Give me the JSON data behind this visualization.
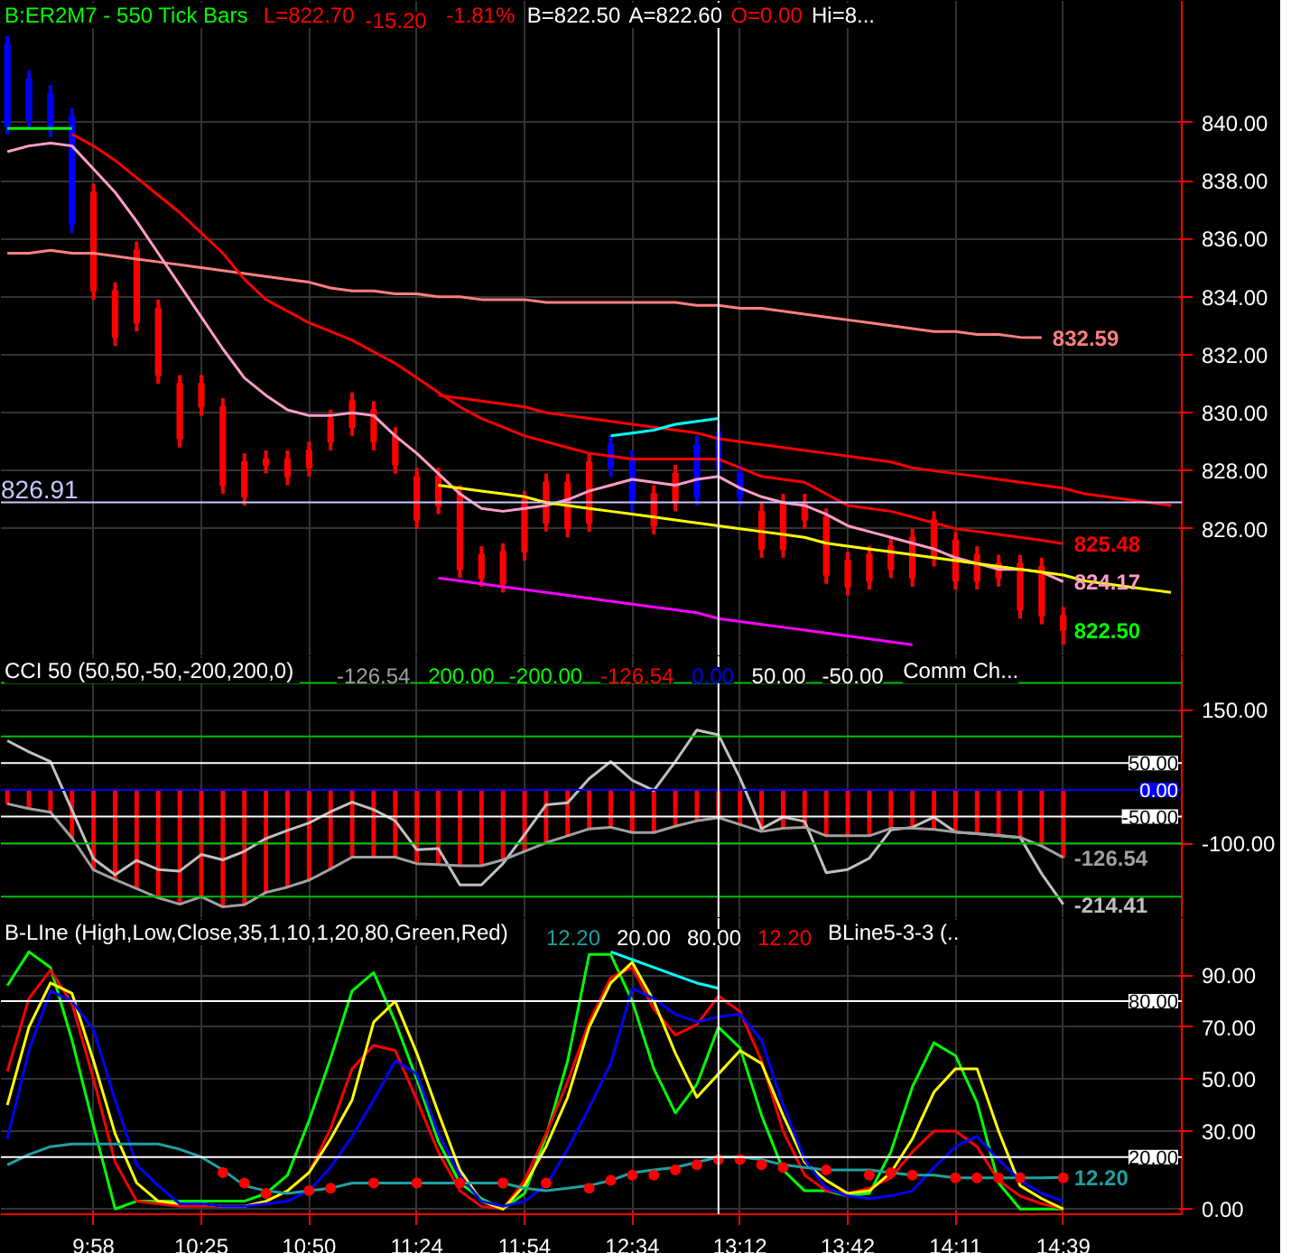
{
  "chart_data": [
    {
      "type": "candlestick",
      "title": "B:ER2M7 - 550 Tick Bars",
      "ylim": [
        821.6,
        844.2
      ],
      "tick_labels": "y",
      "grid": true,
      "categories": [
        null,
        null,
        null,
        null,
        null,
        null,
        null,
        null,
        null,
        null,
        null,
        null,
        null,
        null,
        null,
        null,
        null,
        null,
        null,
        null,
        null,
        null,
        null,
        null,
        null,
        null,
        null,
        null,
        null,
        null,
        null,
        null,
        null,
        null,
        null,
        null,
        null,
        null,
        null,
        null,
        null,
        null,
        null,
        null,
        null,
        null,
        null,
        null,
        null,
        null,
        null,
        null,
        null,
        null,
        null
      ],
      "yticks": [
        {
          "value": 826,
          "label": "826.00"
        },
        {
          "value": 828,
          "label": "828.00"
        },
        {
          "value": 830,
          "label": "830.00"
        },
        {
          "value": 832,
          "label": "832.00"
        },
        {
          "value": 834,
          "label": "834.00"
        },
        {
          "value": 836,
          "label": "836.00"
        },
        {
          "value": 838,
          "label": "838.00"
        },
        {
          "value": 840,
          "label": "840.00"
        }
      ],
      "annotations": [
        "L=822.70",
        "-15.20",
        "-1.81%",
        "B=822.50",
        "A=822.60",
        "O=0.00",
        "Hi=8..."
      ],
      "ref_lines": [
        {
          "axis": "y",
          "value": 826.91,
          "label": "826.91",
          "color": "#c8c8ff"
        }
      ],
      "series": [
        {
          "color": "#00ff00",
          "colors": [
            "#0000ff",
            "#0000ff",
            "#0000ff",
            "#0000ff",
            "#ff0000",
            "#ff0000",
            "#ff0000",
            "#ff0000",
            "#ff0000",
            "#ff0000",
            "#ff0000",
            "#ff0000",
            "#ff0000",
            "#ff0000",
            "#ff0000",
            "#ff0000",
            "#ff0000",
            "#ff0000",
            "#ff0000",
            "#ff0000",
            "#ff0000",
            "#ff0000",
            "#ff0000",
            "#ff0000",
            "#ff0000",
            "#ff0000",
            "#ff0000",
            "#ff0000",
            "#0000ff",
            "#0000ff",
            "#ff0000",
            "#ff0000",
            "#0000ff",
            "#0000ff",
            "#0000ff",
            "#ff0000",
            "#ff0000",
            "#ff0000",
            "#ff0000",
            "#ff0000",
            "#ff0000",
            "#ff0000",
            "#ff0000",
            "#ff0000",
            "#ff0000",
            "#ff0000",
            "#ff0000",
            "#ff0000",
            "#ff0000",
            "#ff0000",
            null,
            null,
            null,
            null,
            null
          ],
          "ohlc": [
            [
              842.7,
              843.0,
              839.6,
              839.9
            ],
            [
              841.5,
              841.8,
              839.8,
              840.1
            ],
            [
              841.0,
              841.3,
              839.5,
              839.8
            ],
            [
              840.2,
              840.5,
              836.2,
              836.5
            ],
            [
              837.6,
              837.9,
              833.9,
              834.2
            ],
            [
              834.2,
              834.5,
              832.3,
              832.6
            ],
            [
              835.6,
              835.9,
              832.8,
              833.1
            ],
            [
              833.6,
              833.9,
              831.0,
              831.3
            ],
            [
              831.0,
              831.3,
              828.8,
              829.1
            ],
            [
              831.0,
              831.3,
              829.9,
              830.2
            ],
            [
              830.2,
              830.5,
              827.2,
              827.5
            ],
            [
              828.3,
              828.6,
              826.8,
              827.1
            ],
            [
              828.4,
              828.7,
              827.9,
              828.2
            ],
            [
              828.4,
              828.7,
              827.5,
              827.8
            ],
            [
              828.7,
              829.0,
              827.8,
              828.1
            ],
            [
              829.8,
              830.1,
              828.7,
              829.0
            ],
            [
              830.4,
              830.7,
              829.2,
              829.5
            ],
            [
              830.1,
              830.4,
              828.7,
              829.0
            ],
            [
              829.2,
              829.5,
              827.9,
              828.2
            ],
            [
              827.8,
              828.1,
              826.0,
              826.3
            ],
            [
              827.8,
              828.1,
              826.5,
              826.8
            ],
            [
              827.2,
              827.5,
              824.3,
              824.6
            ],
            [
              825.1,
              825.4,
              824.0,
              824.3
            ],
            [
              825.2,
              825.5,
              823.8,
              824.1
            ],
            [
              827.0,
              827.3,
              824.9,
              825.2
            ],
            [
              827.6,
              827.9,
              825.9,
              826.2
            ],
            [
              827.6,
              827.9,
              825.7,
              826.0
            ],
            [
              828.3,
              828.6,
              825.9,
              826.2
            ],
            [
              828.9,
              829.2,
              827.8,
              828.1
            ],
            [
              828.4,
              828.7,
              826.6,
              826.9
            ],
            [
              827.2,
              827.5,
              825.8,
              826.1
            ],
            [
              827.9,
              828.2,
              826.6,
              826.9
            ],
            [
              828.9,
              829.2,
              826.8,
              827.1
            ],
            [
              829.3,
              829.6,
              827.8,
              828.1
            ],
            [
              827.9,
              828.2,
              826.8,
              827.1
            ],
            [
              826.6,
              826.9,
              825.0,
              825.3
            ],
            [
              826.9,
              827.2,
              825.0,
              825.3
            ],
            [
              826.9,
              827.2,
              826.0,
              826.3
            ],
            [
              826.4,
              826.7,
              824.1,
              824.4
            ],
            [
              824.9,
              825.2,
              823.7,
              824.0
            ],
            [
              825.1,
              825.4,
              823.9,
              824.2
            ],
            [
              825.4,
              825.7,
              824.3,
              824.6
            ],
            [
              825.7,
              826.0,
              824.0,
              824.3
            ],
            [
              826.3,
              826.6,
              824.7,
              825.0
            ],
            [
              825.6,
              825.9,
              823.9,
              824.2
            ],
            [
              825.1,
              825.4,
              823.9,
              824.2
            ],
            [
              824.8,
              825.1,
              824.0,
              824.3
            ],
            [
              824.8,
              825.1,
              822.9,
              823.2
            ],
            [
              824.7,
              825.0,
              822.7,
              823.0
            ],
            [
              823.0,
              823.3,
              822.0,
              822.5
            ],
            null,
            null,
            null,
            null,
            null
          ],
          "value_labels": [
            null,
            null,
            null,
            null,
            null,
            null,
            null,
            null,
            null,
            null,
            null,
            null,
            null,
            null,
            null,
            null,
            null,
            null,
            null,
            null,
            null,
            null,
            null,
            null,
            null,
            null,
            null,
            null,
            null,
            null,
            null,
            null,
            null,
            null,
            null,
            null,
            null,
            null,
            null,
            null,
            null,
            null,
            null,
            null,
            null,
            null,
            null,
            null,
            null,
            "822.50",
            null,
            null,
            null,
            null,
            null
          ]
        },
        {
          "type": "line",
          "color": "#ff8080",
          "values": [
            835.5,
            835.5,
            835.6,
            835.5,
            835.5,
            835.4,
            835.3,
            835.2,
            835.1,
            835.0,
            834.9,
            834.8,
            834.7,
            834.6,
            834.5,
            834.3,
            834.2,
            834.2,
            834.1,
            834.1,
            834.0,
            834.0,
            833.9,
            833.9,
            833.9,
            833.8,
            833.8,
            833.8,
            833.8,
            833.8,
            833.8,
            833.8,
            833.7,
            833.7,
            833.6,
            833.6,
            833.5,
            833.4,
            833.3,
            833.2,
            833.1,
            833.0,
            832.9,
            832.8,
            832.8,
            832.7,
            832.7,
            832.6,
            832.59,
            null,
            null,
            null,
            null,
            null,
            null
          ],
          "value_labels": [
            null,
            null,
            null,
            null,
            null,
            null,
            null,
            null,
            null,
            null,
            null,
            null,
            null,
            null,
            null,
            null,
            null,
            null,
            null,
            null,
            null,
            null,
            null,
            null,
            null,
            null,
            null,
            null,
            null,
            null,
            null,
            null,
            null,
            null,
            null,
            null,
            null,
            null,
            null,
            null,
            null,
            null,
            null,
            null,
            null,
            null,
            null,
            null,
            "832.59",
            null,
            null,
            null,
            null,
            null,
            null
          ]
        },
        {
          "type": "line",
          "color": "#ff0000",
          "values": [
            null,
            null,
            null,
            839.6,
            839.2,
            838.7,
            838.1,
            837.5,
            836.9,
            836.2,
            835.5,
            834.6,
            833.9,
            833.5,
            833.1,
            832.8,
            832.5,
            832.1,
            831.7,
            831.2,
            830.7,
            830.2,
            829.8,
            829.5,
            829.2,
            829.0,
            828.8,
            828.6,
            828.5,
            828.4,
            828.4,
            828.4,
            828.4,
            828.4,
            828.1,
            827.8,
            827.7,
            827.6,
            827.2,
            826.8,
            826.7,
            826.6,
            826.4,
            826.2,
            826.0,
            825.9,
            825.8,
            825.7,
            825.6,
            825.48,
            null,
            null,
            null,
            null,
            null
          ],
          "value_labels": [
            null,
            null,
            null,
            null,
            null,
            null,
            null,
            null,
            null,
            null,
            null,
            null,
            null,
            null,
            null,
            null,
            null,
            null,
            null,
            null,
            null,
            null,
            null,
            null,
            null,
            null,
            null,
            null,
            null,
            null,
            null,
            null,
            null,
            null,
            null,
            null,
            null,
            null,
            null,
            null,
            null,
            null,
            null,
            null,
            null,
            null,
            null,
            null,
            null,
            "825.48",
            null,
            null,
            null,
            null,
            null
          ]
        },
        {
          "type": "line",
          "color": "#ff9ec8",
          "values": [
            839.0,
            839.2,
            839.3,
            839.2,
            838.4,
            837.6,
            836.6,
            835.5,
            834.4,
            833.3,
            832.2,
            831.2,
            830.6,
            830.1,
            829.9,
            829.9,
            830.0,
            829.9,
            829.2,
            828.6,
            827.9,
            827.2,
            826.7,
            826.6,
            826.7,
            826.8,
            827.0,
            827.3,
            827.5,
            827.7,
            827.6,
            827.5,
            827.7,
            827.8,
            827.4,
            827.1,
            826.9,
            826.8,
            826.5,
            826.1,
            825.9,
            825.7,
            825.5,
            825.3,
            825.0,
            824.8,
            824.6,
            824.6,
            824.5,
            824.17,
            null,
            null,
            null,
            null,
            null
          ],
          "value_labels": [
            null,
            null,
            null,
            null,
            null,
            null,
            null,
            null,
            null,
            null,
            null,
            null,
            null,
            null,
            null,
            null,
            null,
            null,
            null,
            null,
            null,
            null,
            null,
            null,
            null,
            null,
            null,
            null,
            null,
            null,
            null,
            null,
            null,
            null,
            null,
            null,
            null,
            null,
            null,
            null,
            null,
            null,
            null,
            null,
            null,
            null,
            null,
            null,
            null,
            "824.17",
            null,
            null,
            null,
            null,
            null
          ]
        },
        {
          "type": "line",
          "color": "#ff0000",
          "values": [
            null,
            null,
            null,
            null,
            null,
            null,
            null,
            null,
            null,
            null,
            null,
            null,
            null,
            null,
            null,
            null,
            null,
            null,
            null,
            null,
            830.6,
            830.5,
            830.4,
            830.3,
            830.2,
            830.0,
            829.9,
            829.8,
            829.7,
            829.6,
            829.5,
            829.4,
            829.3,
            829.1,
            829.0,
            828.9,
            828.8,
            828.7,
            828.6,
            828.5,
            828.4,
            828.3,
            828.1,
            828.0,
            827.9,
            827.8,
            827.7,
            827.6,
            827.5,
            827.4,
            827.2,
            827.1,
            827.0,
            826.9,
            826.8
          ]
        },
        {
          "type": "line",
          "color": "#ffff00",
          "values": [
            null,
            null,
            null,
            null,
            null,
            null,
            null,
            null,
            null,
            null,
            null,
            null,
            null,
            null,
            null,
            null,
            null,
            null,
            null,
            null,
            827.5,
            827.4,
            827.3,
            827.2,
            827.1,
            826.9,
            826.8,
            826.7,
            826.6,
            826.5,
            826.4,
            826.3,
            826.2,
            826.1,
            826.0,
            825.9,
            825.8,
            825.7,
            825.5,
            825.4,
            825.3,
            825.2,
            825.1,
            825.0,
            824.9,
            824.8,
            824.7,
            824.6,
            824.5,
            824.4,
            824.2,
            824.1,
            824.0,
            823.9,
            823.8
          ]
        },
        {
          "type": "line",
          "color": "#ff00ff",
          "values": [
            null,
            null,
            null,
            null,
            null,
            null,
            null,
            null,
            null,
            null,
            null,
            null,
            null,
            null,
            null,
            null,
            null,
            null,
            null,
            null,
            824.3,
            824.2,
            824.1,
            824.0,
            823.9,
            823.8,
            823.7,
            823.6,
            823.5,
            823.4,
            823.3,
            823.2,
            823.1,
            822.9,
            822.8,
            822.7,
            822.6,
            822.5,
            822.4,
            822.3,
            822.2,
            822.1,
            822.0,
            null,
            null,
            null,
            null,
            null,
            null,
            null,
            null,
            null,
            null,
            null,
            null
          ]
        },
        {
          "type": "line",
          "color": "#00ffff",
          "values": [
            null,
            null,
            null,
            null,
            null,
            null,
            null,
            null,
            null,
            null,
            null,
            null,
            null,
            null,
            null,
            null,
            null,
            null,
            null,
            null,
            null,
            null,
            null,
            null,
            null,
            null,
            null,
            null,
            829.2,
            829.3,
            829.4,
            829.6,
            829.7,
            829.8,
            null,
            null,
            null,
            null,
            null,
            null,
            null,
            null,
            null,
            null,
            null,
            null,
            null,
            null,
            null,
            null,
            null,
            null,
            null,
            null,
            null
          ]
        },
        {
          "type": "line",
          "color": "#00ff00",
          "values": [
            839.8,
            839.8,
            839.8,
            839.8,
            null,
            null,
            null,
            null,
            null,
            null,
            null,
            null,
            null,
            null,
            null,
            null,
            null,
            null,
            null,
            null,
            null,
            null,
            null,
            null,
            null,
            null,
            null,
            null,
            null,
            null,
            null,
            null,
            null,
            null,
            null,
            null,
            null,
            null,
            null,
            null,
            null,
            null,
            null,
            null,
            null,
            null,
            null,
            null,
            null,
            null,
            null,
            null,
            null,
            null,
            null
          ]
        }
      ]
    },
    {
      "type": "line",
      "title": "CCI 50  (50,50,-50,-200,200,0)",
      "ylim": [
        -240,
        250
      ],
      "tick_labels": "y",
      "grid": true,
      "categories": [
        null,
        null,
        null,
        null,
        null,
        null,
        null,
        null,
        null,
        null,
        null,
        null,
        null,
        null,
        null,
        null,
        null,
        null,
        null,
        null,
        null,
        null,
        null,
        null,
        null,
        null,
        null,
        null,
        null,
        null,
        null,
        null,
        null,
        null,
        null,
        null,
        null,
        null,
        null,
        null,
        null,
        null,
        null,
        null,
        null,
        null,
        null,
        null,
        null,
        null,
        null,
        null,
        null,
        null,
        null
      ],
      "yticks": [
        {
          "value": 150,
          "label": "150.00"
        },
        {
          "value": -100,
          "label": "-100.00"
        }
      ],
      "annotations": [
        "-126.54",
        "200.00",
        "-200.00",
        "-126.54",
        "0.00",
        "50.00",
        "-50.00",
        "Comm Ch..."
      ],
      "ref_lines": [
        {
          "axis": "y",
          "value": 200,
          "color": "#00c000"
        },
        {
          "axis": "y",
          "value": 100,
          "color": "#00c000"
        },
        {
          "axis": "y",
          "value": 50,
          "label": "50.00",
          "color": "#ffffff"
        },
        {
          "axis": "y",
          "value": 0,
          "label": "0.00",
          "color": "#0000ff"
        },
        {
          "axis": "y",
          "value": -50,
          "label": "-50.00",
          "color": "#ffffff"
        },
        {
          "axis": "y",
          "value": -100,
          "color": "#00c000"
        },
        {
          "axis": "y",
          "value": -200,
          "color": "#00c000"
        }
      ],
      "series": [
        {
          "type": "bar",
          "color": "#ff0000",
          "values": [
            -26,
            -35,
            -42,
            -90,
            -150,
            -168,
            -185,
            -202,
            -214,
            -200,
            -219,
            -215,
            -192,
            -182,
            -169,
            -148,
            -126,
            -126,
            -126,
            -138,
            -140,
            -142,
            -142,
            -131,
            -115,
            -99,
            -86,
            -73,
            -70,
            -80,
            -80,
            -68,
            -58,
            -52,
            -65,
            -78,
            -72,
            -70,
            -86,
            -86,
            -86,
            -72,
            -72,
            -74,
            -79,
            -82,
            -85,
            -89,
            -105,
            -126.54,
            null,
            null,
            null,
            null,
            null
          ]
        },
        {
          "color": "#c0c0c0",
          "values": [
            92,
            71,
            53,
            -38,
            -129,
            -159,
            -132,
            -149,
            -152,
            -121,
            -131,
            -115,
            -91,
            -76,
            -62,
            -41,
            -23,
            -37,
            -58,
            -112,
            -110,
            -178,
            -178,
            -138,
            -84,
            -28,
            -24,
            21,
            53,
            18,
            -1,
            53,
            112,
            103,
            22,
            -73,
            -51,
            -59,
            -155,
            -149,
            -128,
            -75,
            -70,
            -51,
            -79,
            -82,
            -86,
            -89,
            -157,
            -214.41,
            null,
            null,
            null,
            null,
            null
          ],
          "value_labels": [
            null,
            null,
            null,
            null,
            null,
            null,
            null,
            null,
            null,
            null,
            null,
            null,
            null,
            null,
            null,
            null,
            null,
            null,
            null,
            null,
            null,
            null,
            null,
            null,
            null,
            null,
            null,
            null,
            null,
            null,
            null,
            null,
            null,
            null,
            null,
            null,
            null,
            null,
            null,
            null,
            null,
            null,
            null,
            null,
            null,
            null,
            null,
            null,
            null,
            "-214.41",
            null,
            null,
            null,
            null,
            null
          ]
        },
        {
          "color": "#a0a0a0",
          "values": [
            -26,
            -35,
            -42,
            -90,
            -150,
            -168,
            -185,
            -202,
            -214,
            -200,
            -219,
            -215,
            -192,
            -182,
            -169,
            -148,
            -126,
            -126,
            -126,
            -138,
            -140,
            -142,
            -142,
            -131,
            -115,
            -99,
            -86,
            -73,
            -70,
            -80,
            -80,
            -68,
            -58,
            -52,
            -65,
            -78,
            -72,
            -70,
            -86,
            -86,
            -86,
            -72,
            -72,
            -74,
            -79,
            -82,
            -85,
            -89,
            -105,
            -126.54,
            null,
            null,
            null,
            null,
            null
          ],
          "value_labels": [
            null,
            null,
            null,
            null,
            null,
            null,
            null,
            null,
            null,
            null,
            null,
            null,
            null,
            null,
            null,
            null,
            null,
            null,
            null,
            null,
            null,
            null,
            null,
            null,
            null,
            null,
            null,
            null,
            null,
            null,
            null,
            null,
            null,
            null,
            null,
            null,
            null,
            null,
            null,
            null,
            null,
            null,
            null,
            null,
            null,
            null,
            null,
            null,
            null,
            "-126.54",
            null,
            null,
            null,
            null,
            null
          ]
        }
      ]
    },
    {
      "type": "line",
      "title": "B-LIne  (High,Low,Close,35,1,10,1,20,80,Green,Red)",
      "ylim": [
        -2,
        112
      ],
      "grid": true,
      "categories": [
        null,
        null,
        null,
        null,
        "9:58",
        null,
        null,
        null,
        null,
        "10:25",
        null,
        null,
        null,
        null,
        "10:50",
        null,
        null,
        null,
        null,
        "11:24",
        null,
        null,
        null,
        null,
        "11:54",
        null,
        null,
        null,
        null,
        "12:34",
        null,
        null,
        null,
        null,
        "13:12",
        null,
        null,
        null,
        null,
        "13:42",
        null,
        null,
        null,
        null,
        "14:11",
        null,
        null,
        null,
        null,
        "14:39",
        null,
        null,
        null,
        null,
        null
      ],
      "yticks": [
        {
          "value": 0,
          "label": "0.00"
        },
        {
          "value": 30,
          "label": "30.00"
        },
        {
          "value": 50,
          "label": "50.00"
        },
        {
          "value": 70,
          "label": "70.00"
        },
        {
          "value": 90,
          "label": "90.00"
        }
      ],
      "annotations": [
        "12.20",
        "20.00",
        "80.00",
        "12.20",
        "BLine5-3-3  (.."
      ],
      "ref_lines": [
        {
          "axis": "y",
          "value": 80,
          "label": "80.00",
          "color": "#ffffff"
        },
        {
          "axis": "y",
          "value": 20,
          "label": "20.00",
          "color": "#ffffff"
        }
      ],
      "series": [
        {
          "color": "#00ff00",
          "values": [
            86,
            99,
            93,
            65,
            32,
            0,
            3,
            3,
            3,
            3,
            3,
            3,
            6,
            13,
            34,
            58,
            84,
            91,
            72,
            50,
            26,
            10,
            4,
            0,
            6,
            28,
            57,
            98,
            98,
            80,
            54,
            37,
            48,
            70,
            62,
            36,
            15,
            7,
            7,
            5,
            6,
            22,
            47,
            64,
            59,
            41,
            10,
            0,
            0,
            0,
            null,
            null,
            null,
            null,
            null
          ]
        },
        {
          "color": "#ff0000",
          "values": [
            53,
            81,
            92,
            79,
            50,
            18,
            3,
            2,
            1,
            1,
            1,
            1,
            3,
            7,
            14,
            31,
            54,
            63,
            61,
            42,
            22,
            7,
            1,
            0,
            11,
            29,
            49,
            72,
            89,
            93,
            77,
            67,
            71,
            82,
            76,
            57,
            30,
            13,
            7,
            6,
            8,
            12,
            22,
            30,
            30,
            24,
            11,
            5,
            2,
            0,
            null,
            null,
            null,
            null,
            null
          ]
        },
        {
          "color": "#ffff00",
          "values": [
            40,
            70,
            87,
            83,
            57,
            29,
            10,
            3,
            2,
            2,
            1,
            1,
            3,
            7,
            14,
            27,
            42,
            72,
            80,
            60,
            37,
            15,
            3,
            0,
            9,
            24,
            43,
            70,
            87,
            95,
            80,
            60,
            43,
            52,
            61,
            56,
            36,
            18,
            11,
            6,
            7,
            14,
            27,
            45,
            54,
            54,
            30,
            9,
            4,
            0,
            null,
            null,
            null,
            null,
            null
          ]
        },
        {
          "color": "#0000ff",
          "values": [
            27,
            61,
            84,
            80,
            69,
            42,
            17,
            9,
            2,
            2,
            1,
            1,
            2,
            3,
            7,
            16,
            28,
            42,
            57,
            52,
            29,
            13,
            3,
            1,
            3,
            9,
            23,
            39,
            56,
            85,
            81,
            75,
            72,
            74,
            75,
            65,
            40,
            19,
            8,
            5,
            4,
            5,
            7,
            16,
            24,
            28,
            19,
            11,
            6,
            3,
            null,
            null,
            null,
            null,
            null
          ]
        },
        {
          "color": "#00ffff",
          "values": [
            null,
            null,
            null,
            null,
            null,
            null,
            null,
            null,
            null,
            null,
            null,
            null,
            null,
            null,
            null,
            null,
            null,
            null,
            null,
            null,
            null,
            null,
            null,
            null,
            null,
            null,
            null,
            null,
            99,
            96,
            93,
            90,
            87,
            85,
            null,
            null,
            null,
            null,
            null,
            null,
            null,
            null,
            null,
            null,
            null,
            null,
            null,
            null,
            null,
            null,
            null,
            null,
            null,
            null,
            null
          ]
        },
        {
          "color": "#20a0a0",
          "values": [
            17,
            21,
            24,
            25,
            25,
            25,
            25,
            25,
            23,
            20,
            15,
            9,
            7,
            6,
            7,
            8,
            10,
            10,
            10,
            10,
            10,
            10,
            10,
            10,
            8,
            7,
            8,
            9,
            11,
            14,
            15,
            16,
            18,
            20,
            20,
            19,
            17,
            16,
            15,
            15,
            15,
            14,
            13,
            13,
            12,
            12,
            12,
            12,
            12,
            12.2,
            null,
            null,
            null,
            null,
            null
          ],
          "value_labels": [
            null,
            null,
            null,
            null,
            null,
            null,
            null,
            null,
            null,
            null,
            null,
            null,
            null,
            null,
            null,
            null,
            null,
            null,
            null,
            null,
            null,
            null,
            null,
            null,
            null,
            null,
            null,
            null,
            null,
            null,
            null,
            null,
            null,
            null,
            null,
            null,
            null,
            null,
            null,
            null,
            null,
            null,
            null,
            null,
            null,
            null,
            null,
            null,
            null,
            "12.20",
            null,
            null,
            null,
            null,
            null
          ]
        },
        {
          "type": "scatter",
          "marker": "circle",
          "color": "#ff0000",
          "values": [
            null,
            null,
            null,
            null,
            null,
            null,
            null,
            null,
            null,
            null,
            14,
            10,
            6,
            null,
            7,
            8,
            null,
            10,
            null,
            10,
            null,
            10,
            null,
            10,
            null,
            10,
            null,
            8,
            11,
            13,
            13,
            15,
            17,
            19,
            19,
            17,
            16,
            null,
            15,
            null,
            13,
            14,
            13,
            null,
            12,
            12,
            12,
            12,
            null,
            12,
            null,
            null,
            null,
            null,
            null
          ]
        }
      ]
    }
  ]
}
